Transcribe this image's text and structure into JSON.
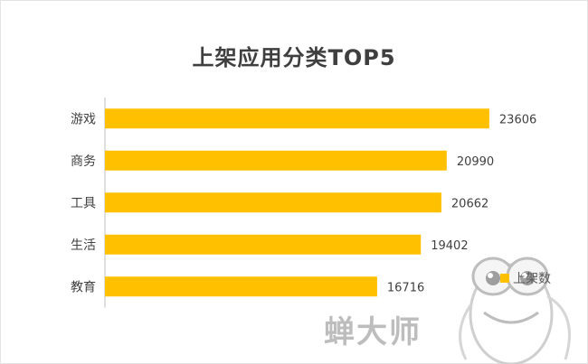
{
  "chart_data": {
    "type": "bar",
    "orientation": "horizontal",
    "title": "上架应用分类TOP5",
    "categories": [
      "游戏",
      "商务",
      "工具",
      "生活",
      "教育"
    ],
    "series": [
      {
        "name": "上架数",
        "values": [
          23606,
          20990,
          20662,
          19402,
          16716
        ]
      }
    ],
    "xlim": [
      0,
      24000
    ],
    "grid": false,
    "legend_position": "right",
    "bar_color": "#ffc000"
  },
  "watermark": "蝉大师"
}
